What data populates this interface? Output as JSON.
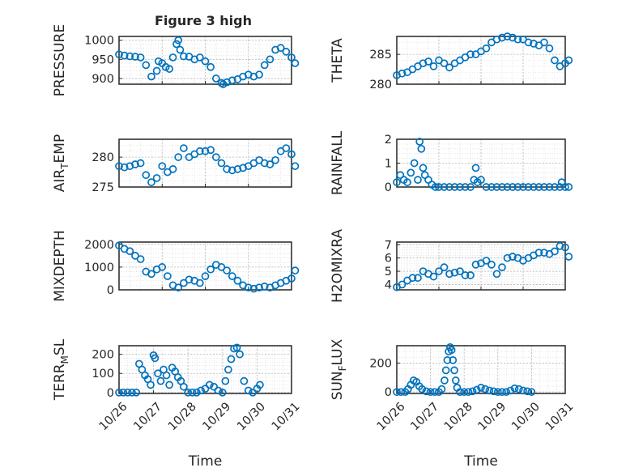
{
  "figure": {
    "title": "Figure 3 high",
    "marker_color": "#0072bd",
    "axis_color": "#262626"
  },
  "chart_data": [
    {
      "type": "scatter",
      "title": "Figure 3 high",
      "ylabel": "PRESSURE",
      "ylabel_sub": null,
      "xlim": [
        "10/26",
        "10/30"
      ],
      "ylim": [
        885,
        1010
      ],
      "yticks": [
        900,
        950,
        1000
      ],
      "xticks": [
        "10/26",
        "10/27",
        "10/28",
        "10/29",
        "10/30"
      ],
      "xticklabels_shown": false,
      "grid": true,
      "minor_grid": true,
      "x": [
        "10/26 00:00",
        "10/26 03:00",
        "10/26 06:00",
        "10/26 09:00",
        "10/26 12:00",
        "10/26 15:00",
        "10/26 18:00",
        "10/26 21:00",
        "10/26 22:00",
        "10/27 00:00",
        "10/27 02:00",
        "10/27 04:00",
        "10/27 06:00",
        "10/27 08:00",
        "10/27 09:00",
        "10/27 10:00",
        "10/27 12:00",
        "10/27 15:00",
        "10/27 18:00",
        "10/27 21:00",
        "10/28 00:00",
        "10/28 03:00",
        "10/28 06:00",
        "10/28 09:00",
        "10/28 10:00",
        "10/28 12:00",
        "10/28 15:00",
        "10/28 18:00",
        "10/28 21:00",
        "10/29 00:00",
        "10/29 03:00",
        "10/29 06:00",
        "10/29 09:00",
        "10/29 12:00",
        "10/29 15:00",
        "10/29 18:00",
        "10/29 21:00",
        "10/30 00:00",
        "10/30 02:00"
      ],
      "y": [
        963,
        960,
        958,
        957,
        955,
        935,
        905,
        920,
        945,
        940,
        930,
        925,
        955,
        990,
        1000,
        975,
        958,
        957,
        950,
        955,
        945,
        930,
        900,
        888,
        885,
        890,
        895,
        898,
        905,
        910,
        905,
        910,
        935,
        950,
        975,
        980,
        970,
        955,
        940
      ]
    },
    {
      "type": "scatter",
      "title": "",
      "ylabel": "THETA",
      "ylabel_sub": null,
      "xlim": [
        "10/26",
        "10/30"
      ],
      "ylim": [
        280,
        288
      ],
      "yticks": [
        280,
        285
      ],
      "xticks": [
        "10/26",
        "10/27",
        "10/28",
        "10/29",
        "10/30"
      ],
      "xticklabels_shown": false,
      "grid": true,
      "minor_grid": true,
      "x": [
        "10/26 00:00",
        "10/26 03:00",
        "10/26 06:00",
        "10/26 09:00",
        "10/26 12:00",
        "10/26 15:00",
        "10/26 18:00",
        "10/26 21:00",
        "10/27 00:00",
        "10/27 03:00",
        "10/27 06:00",
        "10/27 09:00",
        "10/27 12:00",
        "10/27 15:00",
        "10/27 18:00",
        "10/27 21:00",
        "10/28 00:00",
        "10/28 03:00",
        "10/28 06:00",
        "10/28 09:00",
        "10/28 12:00",
        "10/28 15:00",
        "10/28 18:00",
        "10/28 21:00",
        "10/29 00:00",
        "10/29 03:00",
        "10/29 06:00",
        "10/29 09:00",
        "10/29 12:00",
        "10/29 15:00",
        "10/29 18:00",
        "10/29 21:00",
        "10/30 00:00",
        "10/30 02:00"
      ],
      "y": [
        281.5,
        281.8,
        282.0,
        282.5,
        283.0,
        283.5,
        283.8,
        283.0,
        284.0,
        283.5,
        282.8,
        283.5,
        284.0,
        284.5,
        285.0,
        285.0,
        285.5,
        286.0,
        287.0,
        287.5,
        287.8,
        288.0,
        287.8,
        287.5,
        287.5,
        287.0,
        286.8,
        286.5,
        287.0,
        286.0,
        284.0,
        283.0,
        283.5,
        284.0
      ]
    },
    {
      "type": "scatter",
      "title": "",
      "ylabel": "AIR",
      "ylabel_sub": "T",
      "ylabel_tail": "EMP",
      "xlim": [
        "10/26",
        "10/30"
      ],
      "ylim": [
        275,
        283
      ],
      "yticks": [
        275,
        280
      ],
      "xticks": [
        "10/26",
        "10/27",
        "10/28",
        "10/29",
        "10/30"
      ],
      "xticklabels_shown": false,
      "grid": true,
      "minor_grid": true,
      "x": [
        "10/26 00:00",
        "10/26 03:00",
        "10/26 06:00",
        "10/26 09:00",
        "10/26 12:00",
        "10/26 15:00",
        "10/26 18:00",
        "10/26 21:00",
        "10/27 00:00",
        "10/27 03:00",
        "10/27 06:00",
        "10/27 09:00",
        "10/27 12:00",
        "10/27 15:00",
        "10/27 18:00",
        "10/27 21:00",
        "10/28 00:00",
        "10/28 03:00",
        "10/28 06:00",
        "10/28 09:00",
        "10/28 12:00",
        "10/28 15:00",
        "10/28 18:00",
        "10/28 21:00",
        "10/29 00:00",
        "10/29 03:00",
        "10/29 06:00",
        "10/29 09:00",
        "10/29 12:00",
        "10/29 15:00",
        "10/29 18:00",
        "10/29 21:00",
        "10/30 00:00",
        "10/30 02:00"
      ],
      "y": [
        278.5,
        278.3,
        278.5,
        278.8,
        279.0,
        277.0,
        275.8,
        276.5,
        278.5,
        277.5,
        278.0,
        280.0,
        281.5,
        280.0,
        280.5,
        281.0,
        281.0,
        281.2,
        280.0,
        279.0,
        278.0,
        277.8,
        278.0,
        278.2,
        278.5,
        279.0,
        279.5,
        279.0,
        278.8,
        279.5,
        281.0,
        281.5,
        280.5,
        278.5
      ]
    },
    {
      "type": "scatter",
      "title": "",
      "ylabel": "RAINFALL",
      "ylabel_sub": null,
      "xlim": [
        "10/26",
        "10/30"
      ],
      "ylim": [
        0,
        2
      ],
      "yticks": [
        0,
        1,
        2
      ],
      "xticks": [
        "10/26",
        "10/27",
        "10/28",
        "10/29",
        "10/30"
      ],
      "xticklabels_shown": false,
      "grid": true,
      "minor_grid": true,
      "x": [
        "10/26 00:00",
        "10/26 02:00",
        "10/26 04:00",
        "10/26 06:00",
        "10/26 08:00",
        "10/26 10:00",
        "10/26 12:00",
        "10/26 13:00",
        "10/26 14:00",
        "10/26 15:00",
        "10/26 16:00",
        "10/26 18:00",
        "10/26 20:00",
        "10/26 22:00",
        "10/27 00:00",
        "10/27 03:00",
        "10/27 06:00",
        "10/27 09:00",
        "10/27 12:00",
        "10/27 15:00",
        "10/27 18:00",
        "10/27 20:00",
        "10/27 21:00",
        "10/27 22:00",
        "10/28 00:00",
        "10/28 03:00",
        "10/28 06:00",
        "10/28 09:00",
        "10/28 12:00",
        "10/28 15:00",
        "10/28 18:00",
        "10/28 21:00",
        "10/29 00:00",
        "10/29 03:00",
        "10/29 06:00",
        "10/29 09:00",
        "10/29 12:00",
        "10/29 15:00",
        "10/29 18:00",
        "10/29 21:00",
        "10/29 22:00",
        "10/30 00:00",
        "10/30 02:00"
      ],
      "y": [
        0.2,
        0.5,
        0.3,
        0.2,
        0.6,
        1.0,
        0.3,
        1.9,
        1.6,
        0.8,
        0.5,
        0.3,
        0.1,
        0.0,
        0.0,
        0.0,
        0.0,
        0.0,
        0.0,
        0.0,
        0.0,
        0.3,
        0.8,
        0.2,
        0.3,
        0.0,
        0.0,
        0.0,
        0.0,
        0.0,
        0.0,
        0.0,
        0.0,
        0.0,
        0.0,
        0.0,
        0.0,
        0.0,
        0.0,
        0.0,
        0.2,
        0.0,
        0.0
      ]
    },
    {
      "type": "scatter",
      "title": "",
      "ylabel": "MIXDEPTH",
      "ylabel_sub": null,
      "xlim": [
        "10/26",
        "10/30"
      ],
      "ylim": [
        0,
        2100
      ],
      "yticks": [
        0,
        1000,
        2000
      ],
      "xticks": [
        "10/26",
        "10/27",
        "10/28",
        "10/29",
        "10/30"
      ],
      "xticklabels_shown": false,
      "grid": true,
      "minor_grid": true,
      "x": [
        "10/26 00:00",
        "10/26 03:00",
        "10/26 06:00",
        "10/26 09:00",
        "10/26 12:00",
        "10/26 15:00",
        "10/26 18:00",
        "10/26 21:00",
        "10/27 00:00",
        "10/27 03:00",
        "10/27 06:00",
        "10/27 09:00",
        "10/27 12:00",
        "10/27 15:00",
        "10/27 18:00",
        "10/27 21:00",
        "10/28 00:00",
        "10/28 03:00",
        "10/28 06:00",
        "10/28 09:00",
        "10/28 12:00",
        "10/28 15:00",
        "10/28 18:00",
        "10/28 21:00",
        "10/29 00:00",
        "10/29 03:00",
        "10/29 06:00",
        "10/29 09:00",
        "10/29 12:00",
        "10/29 15:00",
        "10/29 18:00",
        "10/29 21:00",
        "10/30 00:00",
        "10/30 02:00"
      ],
      "y": [
        1950,
        1800,
        1700,
        1500,
        1350,
        800,
        700,
        900,
        1000,
        600,
        200,
        100,
        300,
        450,
        400,
        300,
        600,
        900,
        1100,
        1000,
        850,
        600,
        400,
        200,
        100,
        50,
        100,
        150,
        100,
        200,
        300,
        400,
        500,
        850
      ]
    },
    {
      "type": "scatter",
      "title": "",
      "ylabel": "H2OMIXRA",
      "ylabel_sub": null,
      "xlim": [
        "10/26",
        "10/30"
      ],
      "ylim": [
        3.6,
        7.2
      ],
      "yticks": [
        4,
        5,
        6,
        7
      ],
      "xticks": [
        "10/26",
        "10/27",
        "10/28",
        "10/29",
        "10/30"
      ],
      "xticklabels_shown": false,
      "grid": true,
      "minor_grid": true,
      "x": [
        "10/26 00:00",
        "10/26 03:00",
        "10/26 06:00",
        "10/26 09:00",
        "10/26 12:00",
        "10/26 15:00",
        "10/26 18:00",
        "10/26 21:00",
        "10/27 00:00",
        "10/27 03:00",
        "10/27 06:00",
        "10/27 09:00",
        "10/27 12:00",
        "10/27 15:00",
        "10/27 18:00",
        "10/27 21:00",
        "10/28 00:00",
        "10/28 03:00",
        "10/28 06:00",
        "10/28 09:00",
        "10/28 12:00",
        "10/28 15:00",
        "10/28 18:00",
        "10/28 21:00",
        "10/29 00:00",
        "10/29 03:00",
        "10/29 06:00",
        "10/29 09:00",
        "10/29 12:00",
        "10/29 15:00",
        "10/29 18:00",
        "10/29 21:00",
        "10/30 00:00",
        "10/30 02:00"
      ],
      "y": [
        3.8,
        4.0,
        4.3,
        4.5,
        4.5,
        5.0,
        4.8,
        4.6,
        5.0,
        5.3,
        4.8,
        4.9,
        5.0,
        4.7,
        4.7,
        5.5,
        5.6,
        5.8,
        5.5,
        4.8,
        5.3,
        6.0,
        6.1,
        6.0,
        5.8,
        6.0,
        6.2,
        6.4,
        6.4,
        6.3,
        6.5,
        6.9,
        6.8,
        6.1
      ]
    },
    {
      "type": "scatter",
      "title": "",
      "ylabel": "TERR",
      "ylabel_sub": "M",
      "ylabel_tail": "SL",
      "xlim": [
        "10/26",
        "10/31"
      ],
      "ylim": [
        -5,
        245
      ],
      "yticks": [
        0,
        100,
        200
      ],
      "xticks": [
        "10/26",
        "10/27",
        "10/28",
        "10/29",
        "10/30",
        "10/31"
      ],
      "xticklabels_shown": true,
      "xlabel": "Time",
      "grid": true,
      "minor_grid": true,
      "x": [
        "10/26 00:00",
        "10/26 03:00",
        "10/26 06:00",
        "10/26 09:00",
        "10/26 12:00",
        "10/26 14:00",
        "10/26 16:00",
        "10/26 18:00",
        "10/26 20:00",
        "10/26 22:00",
        "10/27 00:00",
        "10/27 01:00",
        "10/27 03:00",
        "10/27 05:00",
        "10/27 07:00",
        "10/27 09:00",
        "10/27 11:00",
        "10/27 13:00",
        "10/27 15:00",
        "10/27 17:00",
        "10/27 19:00",
        "10/27 21:00",
        "10/28 00:00",
        "10/28 03:00",
        "10/28 06:00",
        "10/28 09:00",
        "10/28 12:00",
        "10/28 15:00",
        "10/28 18:00",
        "10/28 21:00",
        "10/29 00:00",
        "10/29 02:00",
        "10/29 04:00",
        "10/29 06:00",
        "10/29 08:00",
        "10/29 10:00",
        "10/29 12:00",
        "10/29 15:00",
        "10/29 18:00",
        "10/29 21:00",
        "10/30 00:00",
        "10/30 02:00"
      ],
      "y": [
        0,
        0,
        0,
        0,
        0,
        150,
        120,
        90,
        70,
        40,
        195,
        180,
        100,
        60,
        120,
        90,
        40,
        130,
        110,
        80,
        60,
        30,
        0,
        0,
        0,
        10,
        20,
        40,
        30,
        10,
        0,
        60,
        120,
        175,
        230,
        235,
        200,
        60,
        10,
        0,
        20,
        40
      ]
    },
    {
      "type": "scatter",
      "title": "",
      "ylabel": "SUN",
      "ylabel_sub": "F",
      "ylabel_tail": "LUX",
      "xlim": [
        "10/26",
        "10/31"
      ],
      "ylim": [
        -10,
        320
      ],
      "yticks": [
        0,
        200
      ],
      "xticks": [
        "10/26",
        "10/27",
        "10/28",
        "10/29",
        "10/30",
        "10/31"
      ],
      "xticklabels_shown": true,
      "xlabel": "Time",
      "grid": true,
      "minor_grid": true,
      "x": [
        "10/26 00:00",
        "10/26 03:00",
        "10/26 06:00",
        "10/26 08:00",
        "10/26 10:00",
        "10/26 12:00",
        "10/26 14:00",
        "10/26 16:00",
        "10/26 18:00",
        "10/26 21:00",
        "10/27 00:00",
        "10/27 03:00",
        "10/27 06:00",
        "10/27 08:00",
        "10/27 10:00",
        "10/27 11:00",
        "10/27 12:00",
        "10/27 13:00",
        "10/27 14:00",
        "10/27 15:00",
        "10/27 16:00",
        "10/27 17:00",
        "10/27 18:00",
        "10/27 19:00",
        "10/27 21:00",
        "10/28 00:00",
        "10/28 03:00",
        "10/28 06:00",
        "10/28 09:00",
        "10/28 12:00",
        "10/28 15:00",
        "10/28 18:00",
        "10/28 21:00",
        "10/29 00:00",
        "10/29 03:00",
        "10/29 06:00",
        "10/29 09:00",
        "10/29 12:00",
        "10/29 15:00",
        "10/29 18:00",
        "10/29 21:00",
        "10/30 00:00"
      ],
      "y": [
        0,
        0,
        0,
        20,
        50,
        80,
        70,
        40,
        20,
        5,
        0,
        0,
        0,
        20,
        80,
        150,
        220,
        280,
        310,
        290,
        220,
        150,
        80,
        30,
        0,
        0,
        0,
        5,
        15,
        30,
        20,
        10,
        5,
        0,
        0,
        0,
        10,
        25,
        20,
        10,
        5,
        0
      ]
    }
  ]
}
